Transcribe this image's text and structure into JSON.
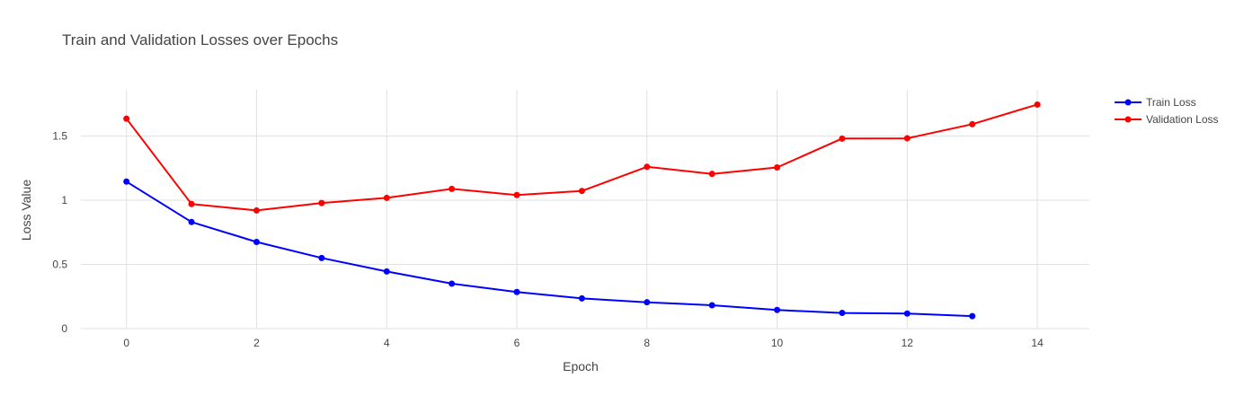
{
  "chart_data": {
    "type": "line",
    "title": "Train and Validation Losses over Epochs",
    "xlabel": "Epoch",
    "ylabel": "Loss Value",
    "xlim": [
      -0.7,
      14.8
    ],
    "ylim": [
      0,
      1.86
    ],
    "x_ticks": [
      0,
      2,
      4,
      6,
      8,
      10,
      12,
      14
    ],
    "y_ticks": [
      0,
      0.5,
      1,
      1.5
    ],
    "y_tick_labels": [
      "0",
      "0.5",
      "1",
      "1.5"
    ],
    "grid": true,
    "legend_position": "top-right",
    "series": [
      {
        "name": "Train Loss",
        "color": "#0000ff",
        "x": [
          0,
          1,
          2,
          3,
          4,
          5,
          6,
          7,
          8,
          9,
          10,
          11,
          12,
          13
        ],
        "y": [
          1.145,
          0.83,
          0.675,
          0.55,
          0.445,
          0.35,
          0.285,
          0.235,
          0.205,
          0.182,
          0.145,
          0.122,
          0.117,
          0.097
        ]
      },
      {
        "name": "Validation Loss",
        "color": "#ff0000",
        "x": [
          0,
          1,
          2,
          3,
          4,
          5,
          6,
          7,
          8,
          9,
          10,
          11,
          12,
          13,
          14
        ],
        "y": [
          1.635,
          0.97,
          0.92,
          0.978,
          1.018,
          1.088,
          1.04,
          1.072,
          1.26,
          1.205,
          1.255,
          1.48,
          1.482,
          1.592,
          1.745
        ]
      }
    ]
  }
}
